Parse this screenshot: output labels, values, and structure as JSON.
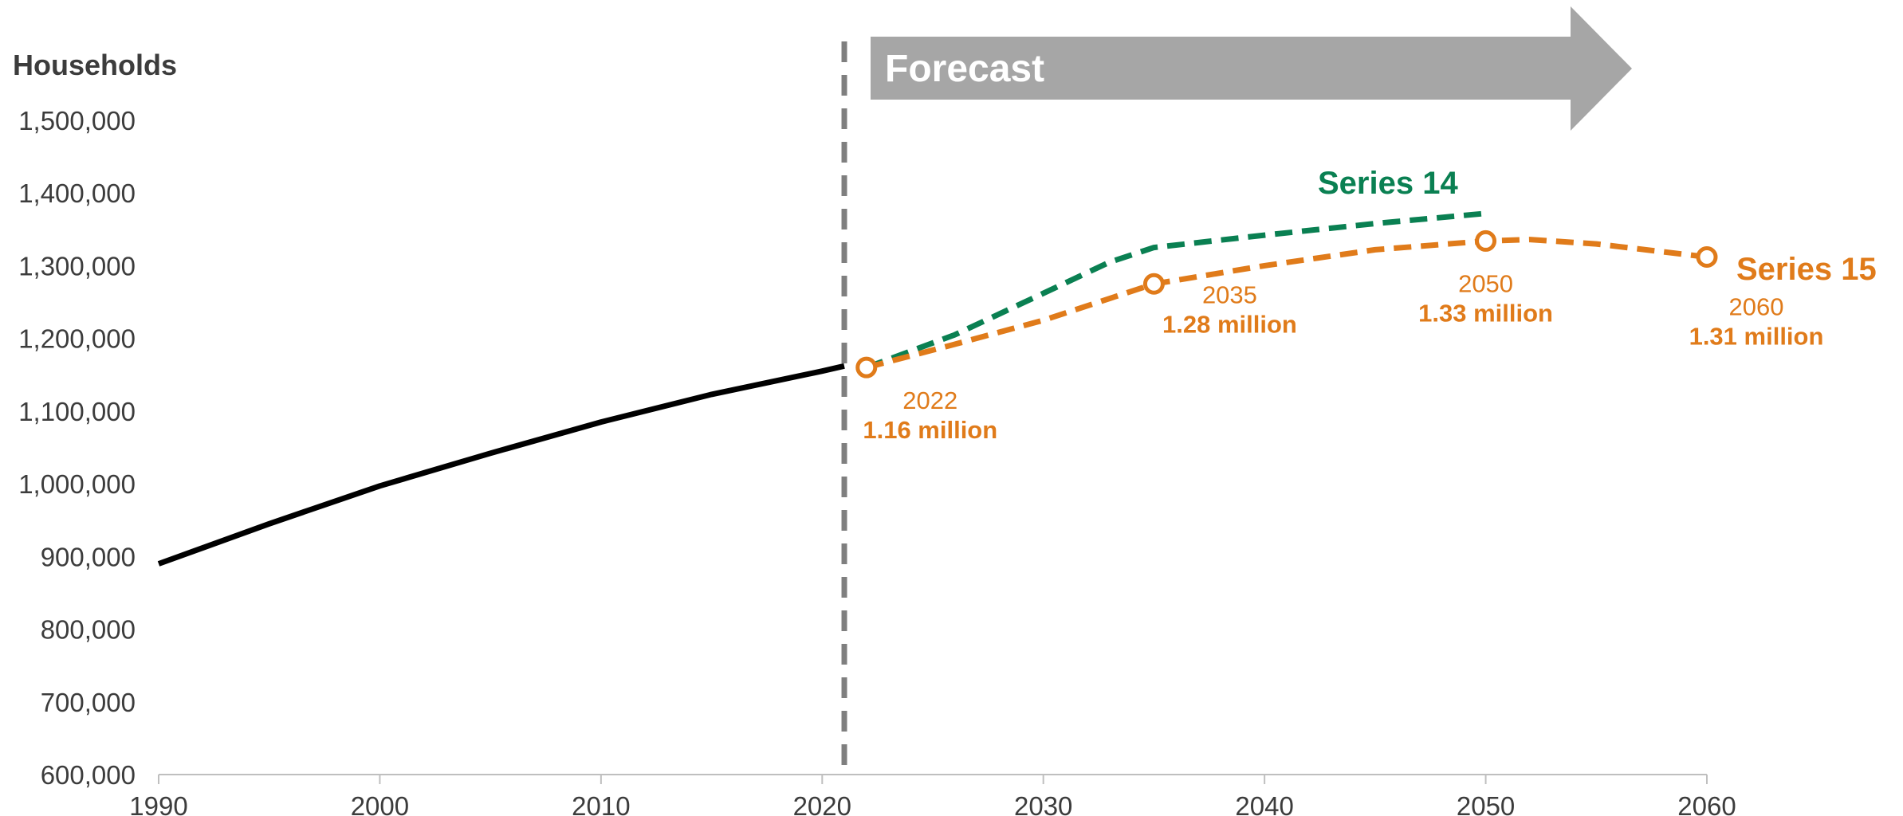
{
  "chart_data": {
    "type": "line",
    "ylabel": "Households",
    "xlabel": "",
    "xlim": [
      1990,
      2060
    ],
    "ylim": [
      600000,
      1500000
    ],
    "x_ticks": [
      1990,
      2000,
      2010,
      2020,
      2030,
      2040,
      2050,
      2060
    ],
    "x_tick_labels": [
      "1990",
      "2000",
      "2010",
      "2020",
      "2030",
      "2040",
      "2050",
      "2060"
    ],
    "y_ticks": [
      600000,
      700000,
      800000,
      900000,
      1000000,
      1100000,
      1200000,
      1300000,
      1400000,
      1500000
    ],
    "y_tick_labels": [
      "600,000",
      "700,000",
      "800,000",
      "900,000",
      "1,000,000",
      "1,100,000",
      "1,200,000",
      "1,300,000",
      "1,400,000",
      "1,500,000"
    ],
    "grid": false,
    "forecast_divider_x": 2021,
    "forecast_label": "Forecast",
    "colors": {
      "historical": "#000000",
      "series14": "#0a8052",
      "series15": "#e07b1a",
      "divider": "#7f7f7f",
      "forecast_arrow": "#a6a6a6",
      "axis": "#bfbfbf",
      "text": "#3c3c3c"
    },
    "series": [
      {
        "id": "historical",
        "style": "solid",
        "x": [
          1990,
          1995,
          2000,
          2005,
          2010,
          2015,
          2020,
          2021
        ],
        "y": [
          890000,
          945000,
          997000,
          1042000,
          1085000,
          1123000,
          1155000,
          1162000
        ]
      },
      {
        "id": "series14",
        "name": "Series 14",
        "style": "dashed",
        "x": [
          2022,
          2026,
          2030,
          2033,
          2035,
          2040,
          2045,
          2050
        ],
        "y": [
          1160000,
          1205000,
          1262000,
          1305000,
          1325000,
          1342000,
          1358000,
          1372000
        ]
      },
      {
        "id": "series15",
        "name": "Series 15",
        "style": "dashed",
        "x": [
          2022,
          2026,
          2030,
          2035,
          2040,
          2045,
          2050,
          2052,
          2055,
          2060
        ],
        "y": [
          1160000,
          1192000,
          1225000,
          1275000,
          1300000,
          1322000,
          1334000,
          1336000,
          1330000,
          1312000
        ]
      }
    ],
    "annotations": [
      {
        "x": 2022,
        "y": 1160000,
        "year": "2022",
        "value": "1.16 million"
      },
      {
        "x": 2035,
        "y": 1275000,
        "year": "2035",
        "value": "1.28 million"
      },
      {
        "x": 2050,
        "y": 1334000,
        "year": "2050",
        "value": "1.33 million"
      },
      {
        "x": 2060,
        "y": 1312000,
        "year": "2060",
        "value": "1.31 million"
      }
    ]
  }
}
